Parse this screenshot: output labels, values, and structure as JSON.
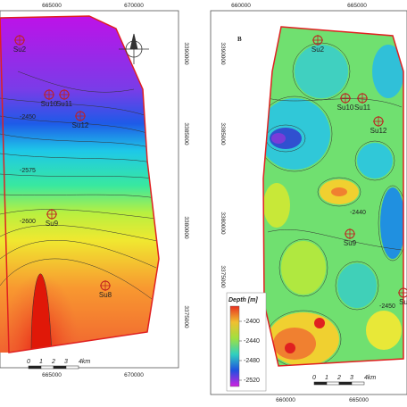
{
  "left_map": {
    "x_labels_top": [
      "665000",
      "670000"
    ],
    "x_labels_bottom": [
      "665000",
      "670000"
    ],
    "y_labels": [
      "3390000",
      "3385000",
      "3380000",
      "3375000"
    ],
    "wells": [
      "Su2",
      "Su10",
      "Su11",
      "Su12",
      "Su9",
      "Su8"
    ],
    "contour_labels": [
      "-2450",
      "-2575",
      "-2600"
    ],
    "scale": [
      "0",
      "1",
      "2",
      "3",
      "4km"
    ]
  },
  "right_map": {
    "panel_label": "B",
    "x_labels_top": [
      "660000",
      "665000"
    ],
    "x_labels_bottom": [
      "660000",
      "665000"
    ],
    "y_labels": [
      "3390000",
      "3385000",
      "3380000",
      "3375000"
    ],
    "wells": [
      "Su2",
      "Su10",
      "Su11",
      "Su12",
      "Su9",
      "Su"
    ],
    "contour_labels": [
      "-2440",
      "-2450"
    ],
    "legend": {
      "title": "Depth [m]",
      "labels": [
        "-2400",
        "-2440",
        "-2480",
        "-2520"
      ]
    },
    "scale": [
      "0",
      "1",
      "2",
      "3",
      "4km"
    ]
  }
}
